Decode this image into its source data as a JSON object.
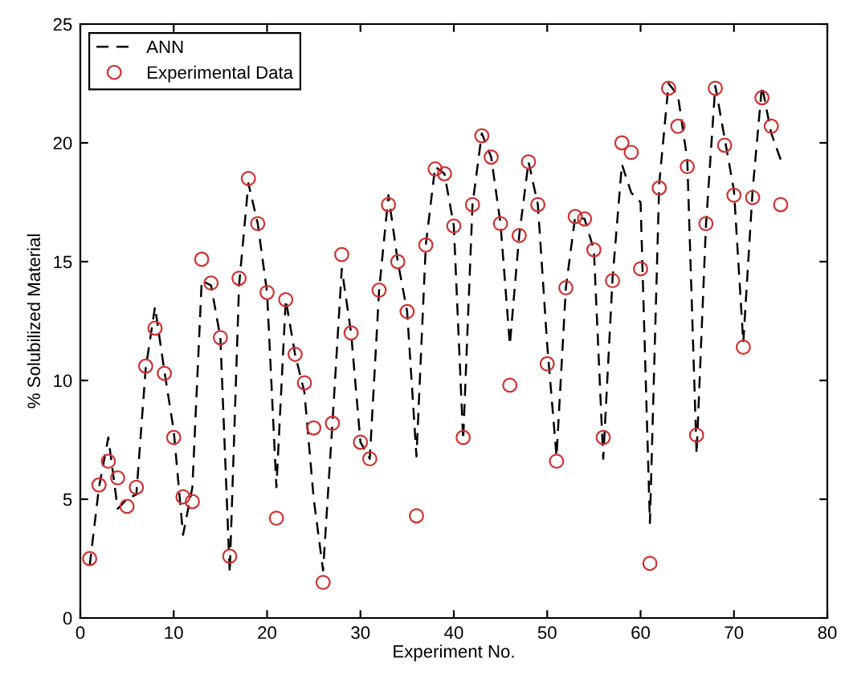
{
  "chart_data": {
    "type": "line",
    "xlabel": "Experiment No.",
    "ylabel": "% Solubilized Material",
    "xlim": [
      0,
      80
    ],
    "xticks": [
      0,
      10,
      20,
      30,
      40,
      50,
      60,
      70,
      80
    ],
    "ylim": [
      0,
      25
    ],
    "yticks": [
      0,
      5,
      10,
      15,
      20,
      25
    ],
    "grid": false,
    "legend": "top left",
    "series": [
      {
        "name": "ANN",
        "color": "#000000",
        "line_style": "dashed",
        "marker": "none",
        "x": [
          1,
          2,
          3,
          4,
          5,
          6,
          7,
          8,
          9,
          10,
          11,
          12,
          13,
          14,
          15,
          16,
          17,
          18,
          19,
          20,
          21,
          22,
          23,
          24,
          25,
          26,
          27,
          28,
          29,
          30,
          31,
          32,
          33,
          34,
          35,
          36,
          37,
          38,
          39,
          40,
          41,
          42,
          43,
          44,
          45,
          46,
          47,
          48,
          49,
          50,
          51,
          52,
          53,
          54,
          55,
          56,
          57,
          58,
          59,
          60,
          61,
          62,
          63,
          64,
          65,
          66,
          67,
          68,
          69,
          70,
          71,
          72,
          73,
          74,
          75
        ],
        "values": [
          2.2,
          5.5,
          7.6,
          4.6,
          5.0,
          5.2,
          10.5,
          13.1,
          10.4,
          7.9,
          3.5,
          5.5,
          14.2,
          14.0,
          11.8,
          1.9,
          14.0,
          18.3,
          16.6,
          13.7,
          5.5,
          13.4,
          11.1,
          9.5,
          5.0,
          2.0,
          8.2,
          14.7,
          12.0,
          7.4,
          6.7,
          13.8,
          17.8,
          15.0,
          12.9,
          6.8,
          15.7,
          19.0,
          18.7,
          16.5,
          7.5,
          17.4,
          20.4,
          19.4,
          16.6,
          11.5,
          16.1,
          19.2,
          17.4,
          11.5,
          6.8,
          13.9,
          16.9,
          16.8,
          15.5,
          6.7,
          14.3,
          19.1,
          17.9,
          17.5,
          4.0,
          18.3,
          22.5,
          22.0,
          19.3,
          6.9,
          16.5,
          22.4,
          20.2,
          18.0,
          11.6,
          18.0,
          22.4,
          20.4,
          19.3
        ]
      },
      {
        "name": "Experimental Data",
        "type": "scatter",
        "color": "#cc3333",
        "marker": "circle",
        "x": [
          1,
          2,
          3,
          4,
          5,
          6,
          7,
          8,
          9,
          10,
          11,
          12,
          13,
          14,
          15,
          16,
          17,
          18,
          19,
          20,
          21,
          22,
          23,
          24,
          25,
          26,
          27,
          28,
          29,
          30,
          31,
          32,
          33,
          34,
          35,
          36,
          37,
          38,
          39,
          40,
          41,
          42,
          43,
          44,
          45,
          46,
          47,
          48,
          49,
          50,
          51,
          52,
          53,
          54,
          55,
          56,
          57,
          58,
          59,
          60,
          61,
          62,
          63,
          64,
          65,
          66,
          67,
          68,
          69,
          70,
          71,
          72,
          73,
          74,
          75
        ],
        "values": [
          2.5,
          5.6,
          6.6,
          5.9,
          4.7,
          5.5,
          10.6,
          12.2,
          10.3,
          7.6,
          5.1,
          4.9,
          15.1,
          14.1,
          11.8,
          2.6,
          14.3,
          18.5,
          16.6,
          13.7,
          4.2,
          13.4,
          11.1,
          9.9,
          8.0,
          1.5,
          8.2,
          15.3,
          12.0,
          7.4,
          6.7,
          13.8,
          17.4,
          15.0,
          12.9,
          4.3,
          15.7,
          18.9,
          18.7,
          16.5,
          7.6,
          17.4,
          20.3,
          19.4,
          16.6,
          9.8,
          16.1,
          19.2,
          17.4,
          10.7,
          6.6,
          13.9,
          16.9,
          16.8,
          15.5,
          7.6,
          14.2,
          20.0,
          19.6,
          14.7,
          2.3,
          18.1,
          22.3,
          20.7,
          19.0,
          7.7,
          16.6,
          22.3,
          19.9,
          17.8,
          11.4,
          17.7,
          21.9,
          20.7,
          17.4
        ]
      }
    ]
  }
}
